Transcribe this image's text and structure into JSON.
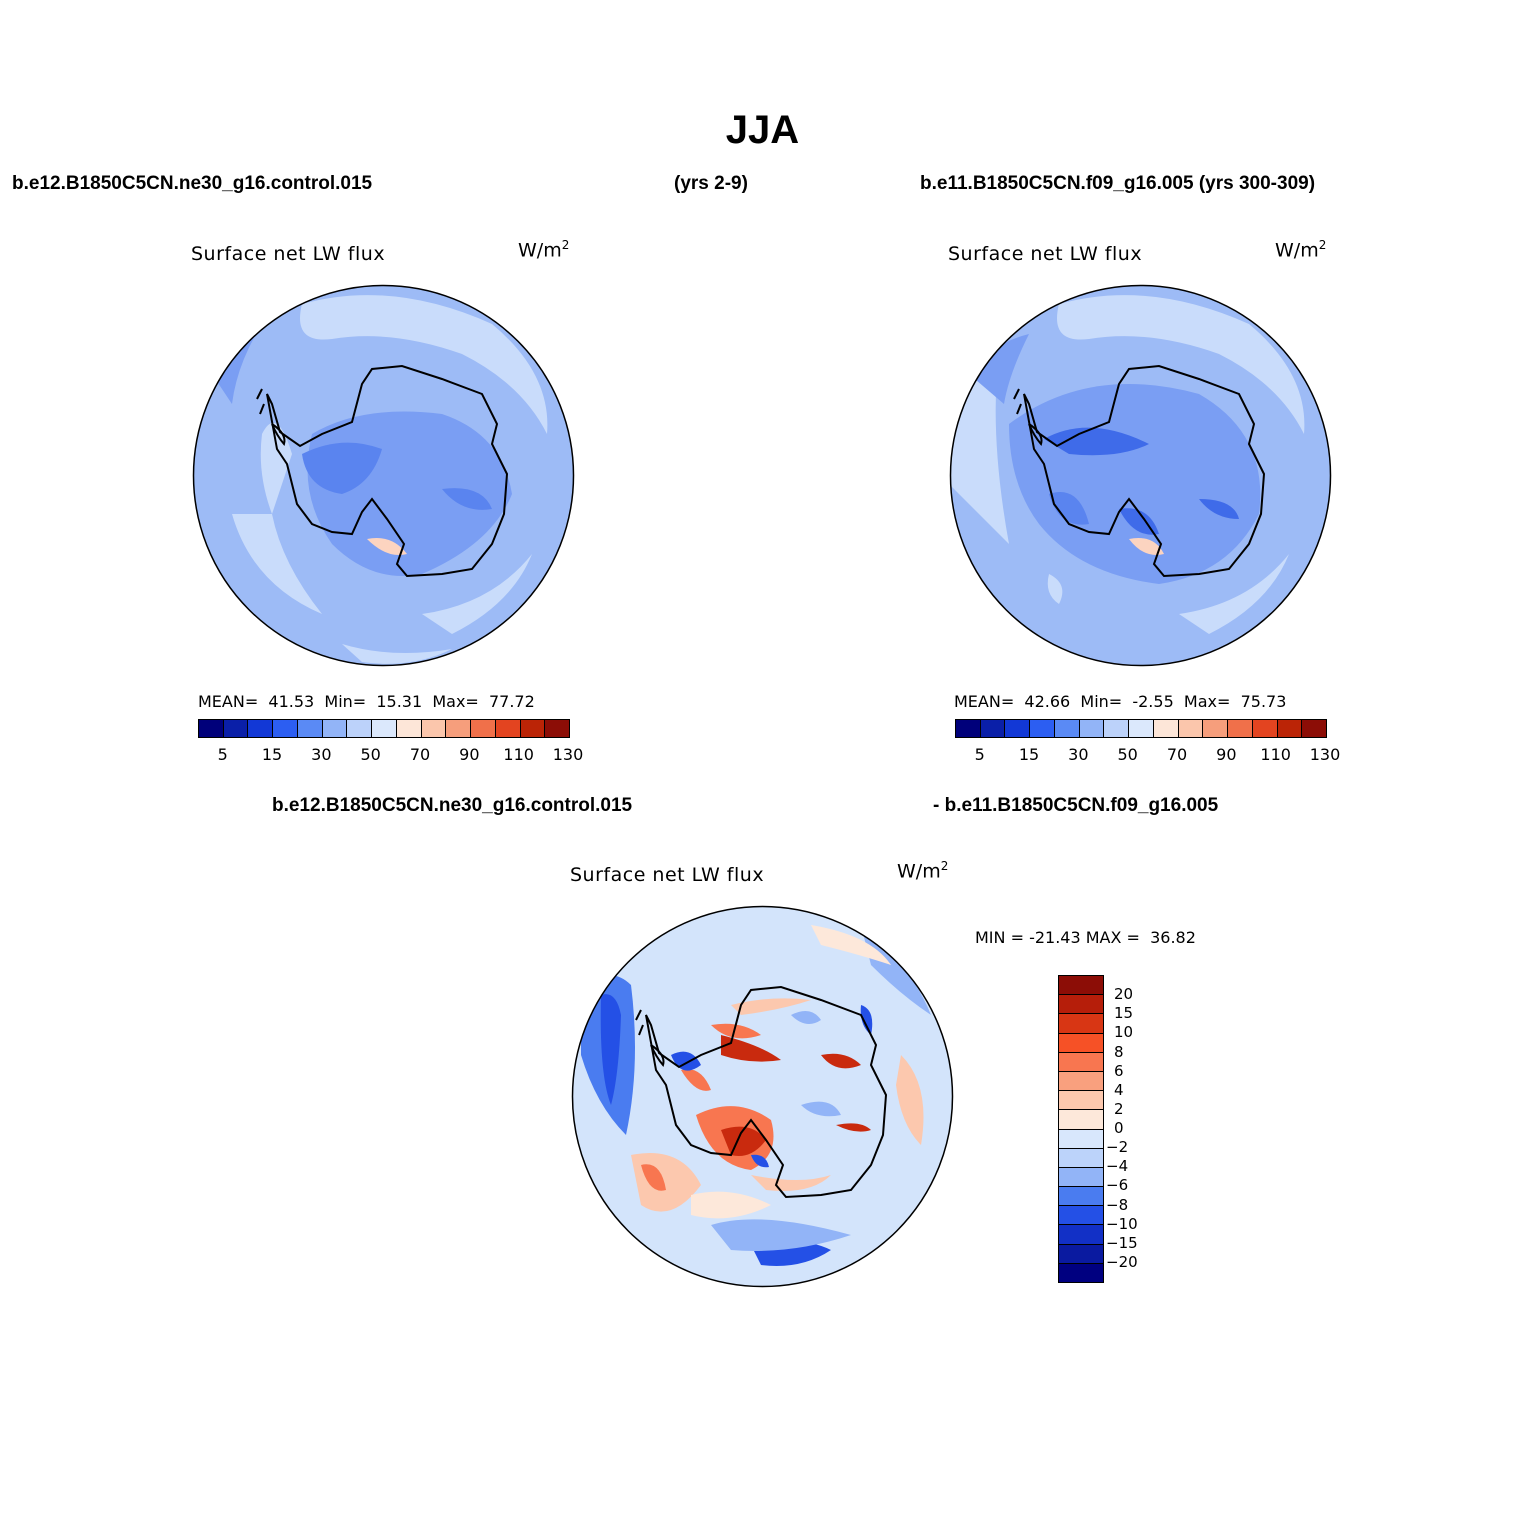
{
  "title": "JJA",
  "panels": {
    "left": {
      "case": "b.e12.B1850C5CN.ne30_g16.control.015",
      "years": "(yrs 2-9)",
      "variable": "Surface net LW flux",
      "units": "W/m",
      "units_sup": "2",
      "stats": "MEAN=  41.53  Min=  15.31  Max=  77.72"
    },
    "right": {
      "case": "b.e11.B1850C5CN.f09_g16.005 (yrs 300-309)",
      "variable": "Surface net LW flux",
      "units": "W/m",
      "units_sup": "2",
      "stats": "MEAN=  42.66  Min=  -2.55  Max=  75.73"
    },
    "diff": {
      "case_a": "b.e12.B1850C5CN.ne30_g16.control.015",
      "case_b": "- b.e11.B1850C5CN.f09_g16.005",
      "variable": "Surface net LW flux",
      "units": "W/m",
      "units_sup": "2",
      "stats": "MIN = -21.43 MAX =  36.82"
    }
  },
  "colorbar_top": {
    "labels": [
      "5",
      "15",
      "30",
      "50",
      "70",
      "90",
      "110",
      "130"
    ],
    "colors": [
      "#00007a",
      "#0a1fa8",
      "#1238d6",
      "#2c5ef2",
      "#5a8af5",
      "#92b4f7",
      "#bcd2fa",
      "#dbe8fc",
      "#fde6d8",
      "#fbc6ac",
      "#f69e7c",
      "#f0704a",
      "#e34420",
      "#bb2406",
      "#8c0d06"
    ]
  },
  "colorbar_diff": {
    "labels": [
      "20",
      "15",
      "10",
      "8",
      "6",
      "4",
      "2",
      "0",
      "-2",
      "-4",
      "-6",
      "-8",
      "-10",
      "-15",
      "-20"
    ],
    "colors": [
      "#8c0d06",
      "#b61e0a",
      "#d83614",
      "#f65126",
      "#f87650",
      "#f9a07e",
      "#fcc8ae",
      "#fde8da",
      "#d8e7fc",
      "#bcd3fa",
      "#92b4f7",
      "#4a7cf0",
      "#2450e6",
      "#1230c6",
      "#0a1aa0",
      "#000080"
    ]
  },
  "map_colors": {
    "land_coast": "#000000",
    "ocean_base": "#9dbbf6",
    "ocean_light": "#c9dcfb",
    "ice_mid": "#7a9ef3",
    "ice_dark": "#3f6be9",
    "warm_light": "#fcd4c0",
    "warm_mid": "#f48a62",
    "warm_dark": "#c92a0e",
    "diff_base": "#d3e4fb"
  }
}
